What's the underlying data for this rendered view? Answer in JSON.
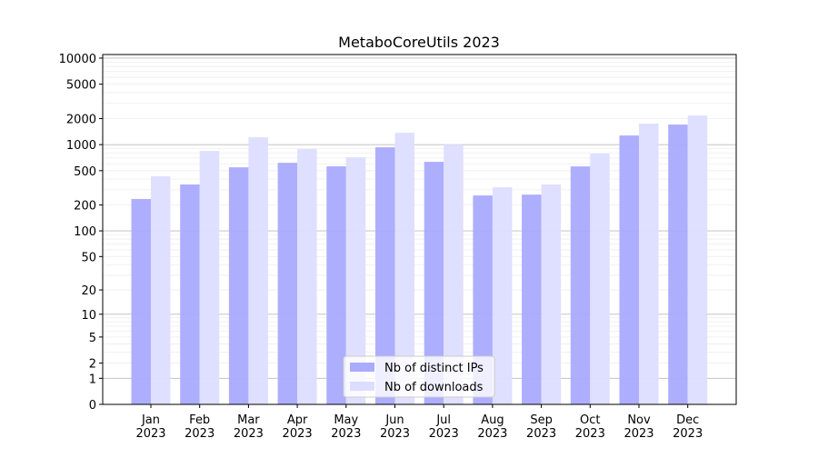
{
  "chart_data": {
    "type": "bar",
    "title": "MetaboCoreUtils 2023",
    "xlabel": "",
    "ylabel": "",
    "yscale": "symlog",
    "ylim": [
      0,
      11000
    ],
    "yticks": [
      0,
      1,
      2,
      5,
      10,
      20,
      50,
      100,
      200,
      500,
      1000,
      2000,
      5000,
      10000
    ],
    "grid": true,
    "legend_placement": "bottom-center",
    "categories": [
      "Jan\n2023",
      "Feb\n2023",
      "Mar\n2023",
      "Apr\n2023",
      "May\n2023",
      "Jun\n2023",
      "Jul\n2023",
      "Aug\n2023",
      "Sep\n2023",
      "Oct\n2023",
      "Nov\n2023",
      "Dec\n2023"
    ],
    "series": [
      {
        "name": "Nb of distinct IPs",
        "color": "#aaaaff",
        "values": [
          235,
          346,
          547,
          617,
          561,
          932,
          633,
          258,
          264,
          560,
          1276,
          1706
        ]
      },
      {
        "name": "Nb of downloads",
        "color": "#ddddff",
        "values": [
          430,
          846,
          1216,
          888,
          714,
          1371,
          1002,
          321,
          346,
          786,
          1750,
          2170
        ]
      }
    ]
  }
}
